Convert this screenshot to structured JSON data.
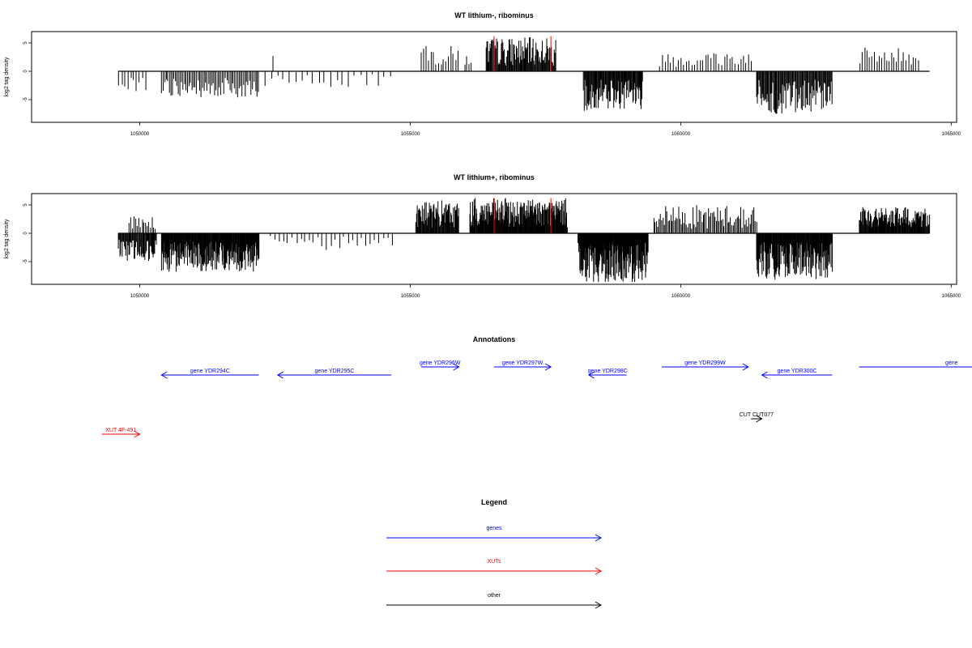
{
  "colors": {
    "genes": "#0000ff",
    "xuts": "#ff0000",
    "other": "#000000",
    "marker": "#ff0000",
    "bars": "#000000"
  },
  "chart_data": [
    {
      "type": "bar",
      "title": "WT lithium-, ribominus",
      "xlabel": "",
      "ylabel": "log2 tag density",
      "xlim": [
        1048000,
        1065100
      ],
      "ylim": [
        -9,
        7
      ],
      "x_ticks": [
        1050000,
        1055000,
        1060000,
        1065000
      ],
      "x_tick_labels": [
        "1050000",
        "1055000",
        "1060000",
        "1065000"
      ],
      "y_ticks": [
        5,
        0,
        -5
      ],
      "y_tick_labels": [
        "5",
        "0",
        "-5"
      ],
      "baseline_range": [
        1049600,
        1064600
      ],
      "marker_positions": [
        1056550,
        1057600
      ],
      "regions": [
        {
          "start": 1049600,
          "end": 1050100,
          "direction": -1,
          "step": 55,
          "max": 3.5,
          "min": 1.0
        },
        {
          "start": 1050400,
          "end": 1052200,
          "direction": -1,
          "step": 28,
          "max": 4.8,
          "min": 1.2
        },
        {
          "start": 1052300,
          "end": 1054700,
          "direction": -1,
          "step": 110,
          "max": 3.0,
          "min": 0.5
        },
        {
          "start": 1052450,
          "end": 1052450,
          "direction": 1,
          "step": 100,
          "max": 2.7,
          "min": 2.7
        },
        {
          "start": 1055200,
          "end": 1055900,
          "direction": 1,
          "step": 45,
          "max": 4.5,
          "min": 1.0
        },
        {
          "start": 1056000,
          "end": 1056150,
          "direction": 1,
          "step": 40,
          "max": 3.2,
          "min": 1.0
        },
        {
          "start": 1056400,
          "end": 1057700,
          "direction": 1,
          "step": 14,
          "max": 6.0,
          "min": 1.0
        },
        {
          "start": 1058200,
          "end": 1059300,
          "direction": -1,
          "step": 13,
          "max": 7.0,
          "min": 1.5
        },
        {
          "start": 1059600,
          "end": 1061300,
          "direction": 1,
          "step": 50,
          "max": 3.6,
          "min": 0.8
        },
        {
          "start": 1061400,
          "end": 1062800,
          "direction": -1,
          "step": 15,
          "max": 7.8,
          "min": 1.5
        },
        {
          "start": 1063300,
          "end": 1064400,
          "direction": 1,
          "step": 45,
          "max": 4.2,
          "min": 1.0
        }
      ]
    },
    {
      "type": "bar",
      "title": "WT lithium+, ribominus",
      "xlabel": "",
      "ylabel": "log2 tag density",
      "xlim": [
        1048000,
        1065100
      ],
      "ylim": [
        -9,
        7
      ],
      "x_ticks": [
        1050000,
        1055000,
        1060000,
        1065000
      ],
      "x_tick_labels": [
        "1050000",
        "1055000",
        "1060000",
        "1065000"
      ],
      "y_ticks": [
        5,
        0,
        -5
      ],
      "y_tick_labels": [
        "5",
        "0",
        "-5"
      ],
      "baseline_range": [
        1049600,
        1064600
      ],
      "marker_positions": [
        1056550,
        1057600
      ],
      "regions": [
        {
          "start": 1049600,
          "end": 1050300,
          "direction": -1,
          "step": 14,
          "max": 5.0,
          "min": 1.0
        },
        {
          "start": 1049800,
          "end": 1050300,
          "direction": 1,
          "step": 30,
          "max": 3.0,
          "min": 0.8
        },
        {
          "start": 1050400,
          "end": 1052200,
          "direction": -1,
          "step": 10,
          "max": 6.8,
          "min": 1.5
        },
        {
          "start": 1052400,
          "end": 1054700,
          "direction": -1,
          "step": 80,
          "max": 3.0,
          "min": 0.4
        },
        {
          "start": 1055100,
          "end": 1055900,
          "direction": 1,
          "step": 12,
          "max": 5.8,
          "min": 1.0
        },
        {
          "start": 1056100,
          "end": 1057900,
          "direction": 1,
          "step": 10,
          "max": 6.2,
          "min": 1.0
        },
        {
          "start": 1058100,
          "end": 1059400,
          "direction": -1,
          "step": 8,
          "max": 8.6,
          "min": 1.5
        },
        {
          "start": 1059500,
          "end": 1061400,
          "direction": 1,
          "step": 24,
          "max": 5.0,
          "min": 0.8
        },
        {
          "start": 1061400,
          "end": 1062800,
          "direction": -1,
          "step": 10,
          "max": 8.2,
          "min": 1.5
        },
        {
          "start": 1063300,
          "end": 1064600,
          "direction": 1,
          "step": 12,
          "max": 4.6,
          "min": 1.0
        }
      ]
    }
  ],
  "annotations": {
    "title": "Annotations",
    "items": [
      {
        "label": "gene YDR294C",
        "start": 1050400,
        "end": 1052200,
        "strand": "-",
        "category": "genes",
        "row": 1
      },
      {
        "label": "gene YDR295C",
        "start": 1052550,
        "end": 1054650,
        "strand": "-",
        "category": "genes",
        "row": 1
      },
      {
        "label": "gene YDR296W",
        "start": 1055200,
        "end": 1055900,
        "strand": "+",
        "category": "genes",
        "row": 0
      },
      {
        "label": "gene YDR297W",
        "start": 1056550,
        "end": 1057600,
        "strand": "+",
        "category": "genes",
        "row": 0
      },
      {
        "label": "gene YDR298C",
        "start": 1058300,
        "end": 1059000,
        "strand": "-",
        "category": "genes",
        "row": 1
      },
      {
        "label": "gene YDR299W",
        "start": 1059650,
        "end": 1061250,
        "strand": "+",
        "category": "genes",
        "row": 0
      },
      {
        "label": "gene YDR300C",
        "start": 1061500,
        "end": 1062800,
        "strand": "-",
        "category": "genes",
        "row": 1
      },
      {
        "label": "gene",
        "start": 1063300,
        "end": 1066000,
        "strand": "+",
        "category": "genes",
        "row": 0
      },
      {
        "label": "CUT CUT077",
        "start": 1061300,
        "end": 1061500,
        "strand": "+",
        "category": "other",
        "row": 2
      },
      {
        "label": "XUT 4F-491",
        "start": 1049300,
        "end": 1050000,
        "strand": "+",
        "category": "xuts",
        "row": 3
      }
    ]
  },
  "legend": {
    "title": "Legend",
    "items": [
      {
        "label": "genes",
        "category": "genes"
      },
      {
        "label": "XUTs",
        "category": "xuts"
      },
      {
        "label": "other",
        "category": "other"
      }
    ]
  }
}
